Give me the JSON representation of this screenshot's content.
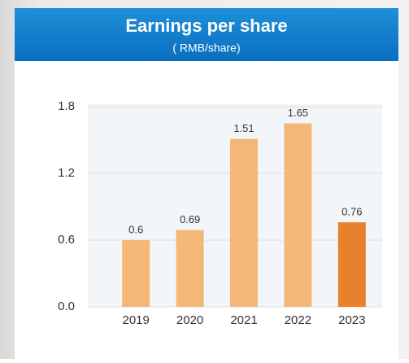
{
  "chart_data": {
    "type": "bar",
    "title": "Earnings per share",
    "subtitle": "( RMB/share)",
    "categories": [
      "2019",
      "2020",
      "2021",
      "2022",
      "2023"
    ],
    "values": [
      0.6,
      0.69,
      1.51,
      1.65,
      0.76
    ],
    "colors": [
      "#f5b778",
      "#f5b778",
      "#f5b778",
      "#f5b778",
      "#e8802e"
    ],
    "ylim": [
      0,
      1.8
    ],
    "yticks": [
      {
        "value": 0,
        "label": "0.0"
      },
      0.6,
      1.2,
      1.8
    ],
    "grid": true
  }
}
